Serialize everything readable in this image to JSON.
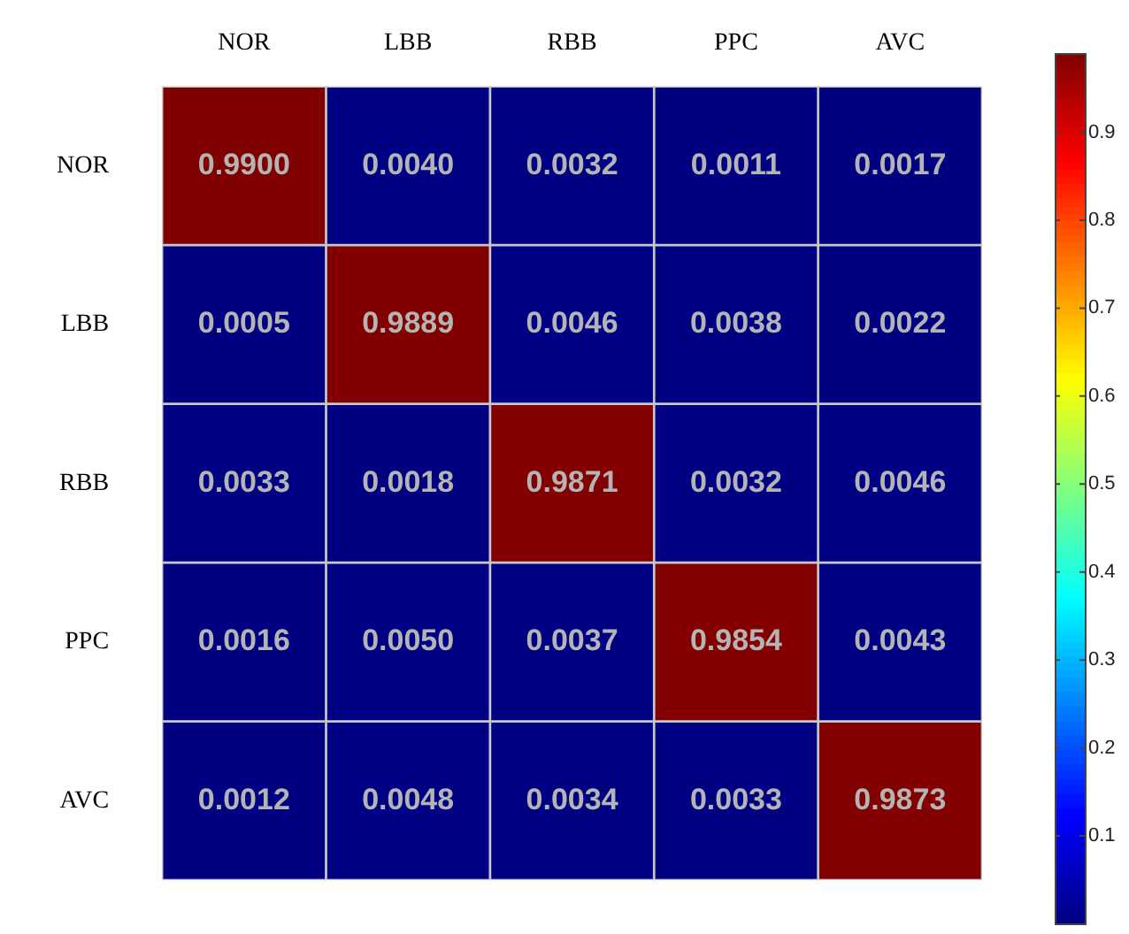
{
  "chart_data": {
    "type": "heatmap",
    "categories": [
      "NOR",
      "LBB",
      "RBB",
      "PPC",
      "AVC"
    ],
    "y_categories": [
      "NOR",
      "LBB",
      "RBB",
      "PPC",
      "AVC"
    ],
    "cells": [
      [
        0.99,
        0.004,
        0.0032,
        0.0011,
        0.0017
      ],
      [
        0.0005,
        0.9889,
        0.0046,
        0.0038,
        0.0022
      ],
      [
        0.0033,
        0.0018,
        0.9871,
        0.0032,
        0.0046
      ],
      [
        0.0016,
        0.005,
        0.0037,
        0.9854,
        0.0043
      ],
      [
        0.0012,
        0.0048,
        0.0034,
        0.0033,
        0.9873
      ]
    ],
    "cell_labels": [
      [
        "0.9900",
        "0.0040",
        "0.0032",
        "0.0011",
        "0.0017"
      ],
      [
        "0.0005",
        "0.9889",
        "0.0046",
        "0.0038",
        "0.0022"
      ],
      [
        "0.0033",
        "0.0018",
        "0.9871",
        "0.0032",
        "0.0046"
      ],
      [
        "0.0016",
        "0.0050",
        "0.0037",
        "0.9854",
        "0.0043"
      ],
      [
        "0.0012",
        "0.0048",
        "0.0034",
        "0.0033",
        "0.9873"
      ]
    ],
    "clim": [
      0.0005,
      0.99
    ],
    "cticks": [
      0.1,
      0.2,
      0.3,
      0.4,
      0.5,
      0.6,
      0.7,
      0.8,
      0.9
    ]
  }
}
